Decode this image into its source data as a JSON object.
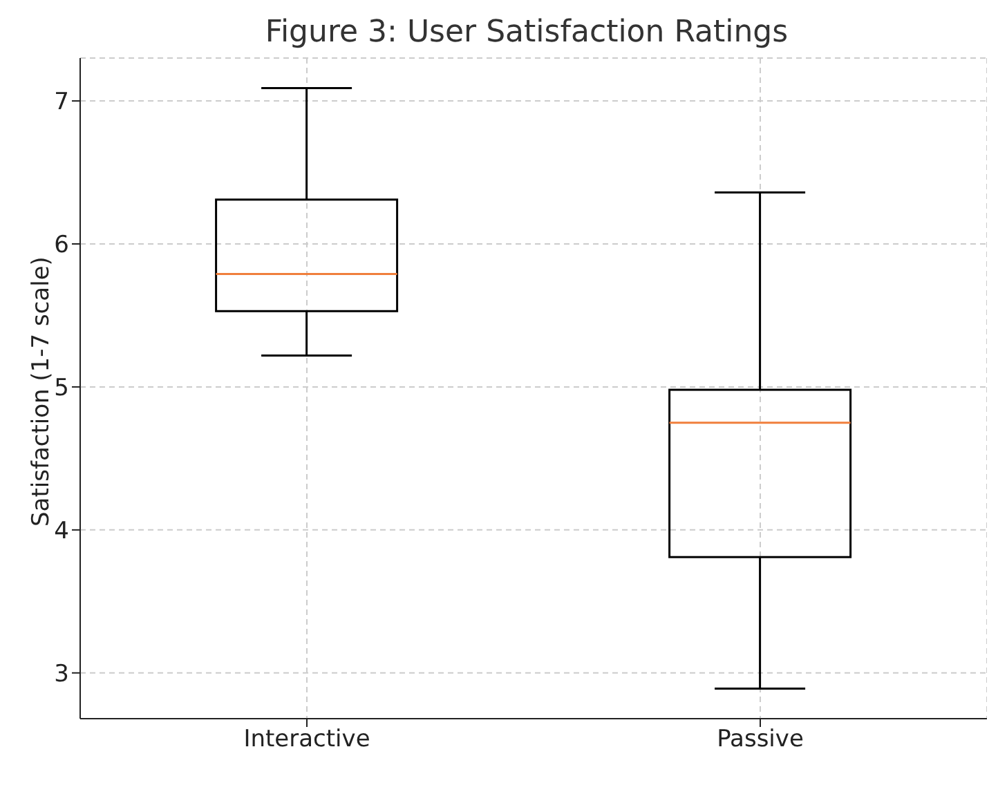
{
  "chart_data": {
    "type": "box",
    "title": "Figure 3: User Satisfaction Ratings",
    "ylabel": "Satisfaction (1-7 scale)",
    "categories": [
      "Interactive",
      "Passive"
    ],
    "boxes": [
      {
        "low": 5.22,
        "q1": 5.53,
        "median": 5.79,
        "q3": 6.31,
        "high": 7.09
      },
      {
        "low": 2.89,
        "q1": 3.81,
        "median": 4.75,
        "q3": 4.98,
        "high": 6.36
      }
    ],
    "color": "#000000",
    "ylim": [
      2.68,
      7.3
    ],
    "yticks": [
      3,
      4,
      5,
      6,
      7
    ],
    "grid": true
  }
}
